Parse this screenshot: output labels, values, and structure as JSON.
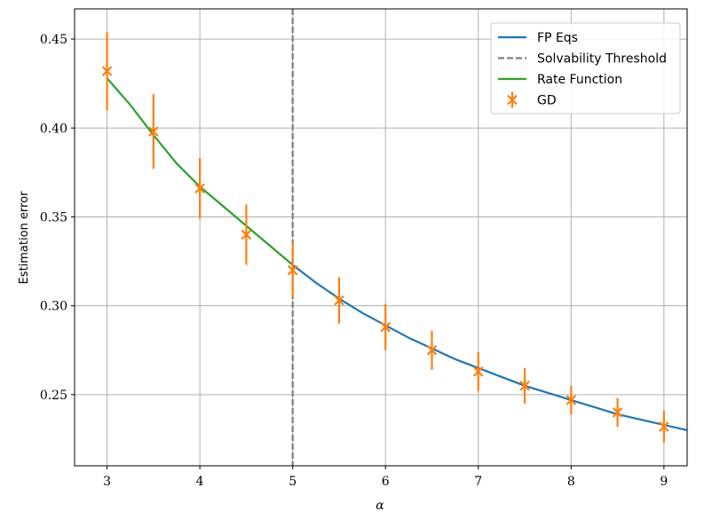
{
  "chart_data": {
    "type": "line",
    "title": "",
    "xlabel": "α",
    "ylabel": "Estimation error",
    "xlim": [
      2.65,
      9.25
    ],
    "ylim": [
      0.21,
      0.467
    ],
    "xticks": [
      3,
      4,
      5,
      6,
      7,
      8,
      9
    ],
    "xtick_labels": [
      "3",
      "4",
      "5",
      "6",
      "7",
      "8",
      "9"
    ],
    "yticks": [
      0.25,
      0.3,
      0.35,
      0.4,
      0.45
    ],
    "ytick_labels": [
      "0.25",
      "0.30",
      "0.35",
      "0.40",
      "0.45"
    ],
    "grid": true,
    "legend_position": "top-right",
    "series": [
      {
        "name": "FP Eqs",
        "kind": "line",
        "color": "#1f77b4",
        "x": [
          5.0,
          5.25,
          5.5,
          5.75,
          6.0,
          6.25,
          6.5,
          6.75,
          7.0,
          7.25,
          7.5,
          7.75,
          8.0,
          8.25,
          8.5,
          8.75,
          9.0,
          9.25
        ],
        "y": [
          0.323,
          0.313,
          0.304,
          0.296,
          0.289,
          0.282,
          0.276,
          0.27,
          0.265,
          0.26,
          0.255,
          0.251,
          0.247,
          0.243,
          0.239,
          0.236,
          0.233,
          0.23
        ]
      },
      {
        "name": "Solvability Threshold",
        "kind": "vline",
        "color": "#7f7f7f",
        "x": 5
      },
      {
        "name": "Rate Function",
        "kind": "line",
        "color": "#2ca02c",
        "x": [
          3.0,
          3.25,
          3.5,
          3.75,
          4.0,
          4.25,
          4.5,
          4.75,
          5.0
        ],
        "y": [
          0.428,
          0.413,
          0.396,
          0.38,
          0.367,
          0.356,
          0.345,
          0.334,
          0.323
        ]
      },
      {
        "name": "GD",
        "kind": "errorbar",
        "color": "#ff7f0e",
        "x": [
          3.0,
          3.5,
          4.0,
          4.5,
          5.0,
          5.5,
          6.0,
          6.5,
          7.0,
          7.5,
          8.0,
          8.5,
          9.0
        ],
        "y": [
          0.432,
          0.398,
          0.366,
          0.34,
          0.32,
          0.303,
          0.288,
          0.275,
          0.263,
          0.255,
          0.247,
          0.24,
          0.232
        ],
        "err": [
          0.022,
          0.021,
          0.017,
          0.017,
          0.015,
          0.013,
          0.013,
          0.011,
          0.011,
          0.01,
          0.008,
          0.008,
          0.009
        ]
      }
    ]
  }
}
